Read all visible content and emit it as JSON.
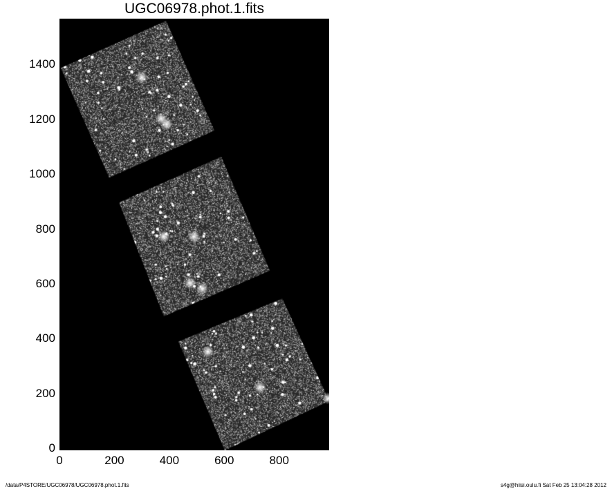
{
  "chart_data": {
    "type": "heatmap",
    "title": "UGC06978.phot.1.fits",
    "xlabel": "",
    "ylabel": "",
    "xlim": [
      0,
      982
    ],
    "ylim": [
      0,
      1575
    ],
    "xticks": [
      "0",
      "200",
      "400",
      "600",
      "800"
    ],
    "yticks": [
      "0",
      "200",
      "400",
      "600",
      "800",
      "1000",
      "1200",
      "1400"
    ],
    "colormap": "grayscale",
    "background": "#000000",
    "image_tiles": [
      {
        "corners": [
          [
            5,
            1395
          ],
          [
            388,
            1567
          ],
          [
            564,
            1167
          ],
          [
            181,
            995
          ]
        ]
      },
      {
        "corners": [
          [
            217,
            904
          ],
          [
            589,
            1071
          ],
          [
            766,
            656
          ],
          [
            380,
            489
          ]
        ]
      },
      {
        "corners": [
          [
            433,
            397
          ],
          [
            811,
            554
          ],
          [
            982,
            180
          ],
          [
            602,
            0
          ]
        ]
      }
    ],
    "bright_sources": [
      [
        370,
        1210
      ],
      [
        390,
        1190
      ],
      [
        300,
        1360
      ],
      [
        475,
        610
      ],
      [
        520,
        590
      ],
      [
        490,
        780
      ],
      [
        380,
        780
      ],
      [
        980,
        190
      ],
      [
        730,
        230
      ],
      [
        540,
        360
      ]
    ]
  },
  "footer": {
    "path": "/data/P4STORE/UGC06978/UGC06978.phot.1.fits",
    "info": "s4g@hiisi.oulu.fi  Sat Feb 25 13:04:28 2012"
  }
}
